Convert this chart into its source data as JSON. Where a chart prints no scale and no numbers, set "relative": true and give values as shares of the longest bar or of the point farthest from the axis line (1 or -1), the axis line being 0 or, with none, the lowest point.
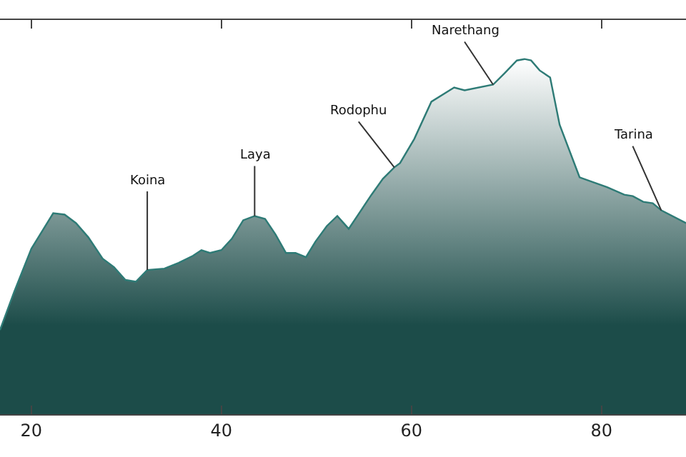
{
  "chart_data": {
    "type": "area",
    "relative": true,
    "xlim": [
      16.7,
      88.9
    ],
    "xticks": [
      20,
      40,
      60,
      80
    ],
    "x": [
      16.7,
      18.2,
      20,
      21.2,
      22.3,
      23.5,
      24.7,
      26.0,
      27.5,
      28.7,
      29.9,
      31.0,
      32.2,
      34.0,
      35.5,
      37.0,
      37.9,
      38.8,
      40.0,
      41.1,
      42.3,
      43.5,
      44.6,
      45.7,
      46.8,
      47.8,
      48.9,
      49.9,
      51.1,
      52.2,
      53.4,
      54.7,
      55.8,
      57.0,
      58.2,
      58.8,
      60.3,
      62.1,
      64.5,
      65.6,
      68.6,
      69.8,
      71.1,
      71.9,
      72.6,
      73.5,
      74.6,
      75.6,
      77.7,
      80.6,
      82.4,
      83.3,
      84.4,
      85.4,
      86.3,
      88.9
    ],
    "series": [
      {
        "color": "#2e7b76",
        "values": [
          0.237,
          0.345,
          0.466,
          0.518,
          0.566,
          0.562,
          0.538,
          0.498,
          0.438,
          0.414,
          0.378,
          0.373,
          0.406,
          0.41,
          0.426,
          0.446,
          0.462,
          0.454,
          0.462,
          0.494,
          0.546,
          0.558,
          0.55,
          0.506,
          0.454,
          0.454,
          0.442,
          0.486,
          0.53,
          0.558,
          0.522,
          0.574,
          0.618,
          0.663,
          0.695,
          0.707,
          0.775,
          0.88,
          0.92,
          0.912,
          0.928,
          0.96,
          0.996,
          1.0,
          0.996,
          0.968,
          0.948,
          0.815,
          0.667,
          0.639,
          0.618,
          0.614,
          0.598,
          0.594,
          0.574,
          0.538
        ]
      }
    ],
    "annotations": [
      {
        "text": "Koina",
        "x": 32.2,
        "y": 0.406
      },
      {
        "text": "Laya",
        "x": 43.5,
        "y": 0.558
      },
      {
        "text": "Rodophu",
        "x": 58.2,
        "y": 0.695
      },
      {
        "text": "Narethang",
        "x": 68.6,
        "y": 0.928
      },
      {
        "text": "Tarina",
        "x": 86.3,
        "y": 0.574
      }
    ]
  }
}
